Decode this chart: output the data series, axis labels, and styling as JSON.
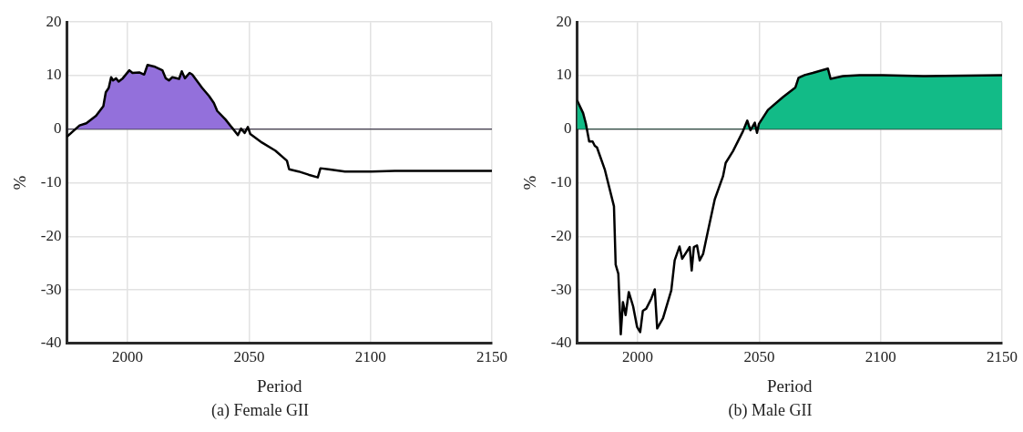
{
  "chart_data": [
    {
      "type": "area",
      "title": "(a) Female GII",
      "xlabel": "Period",
      "ylabel": "%",
      "xlim": [
        1975,
        2150
      ],
      "xticks": [
        2000,
        2050,
        2100,
        2150
      ],
      "ylim": [
        -40,
        20
      ],
      "yticks": [
        -40,
        -30,
        -20,
        -10,
        0,
        10,
        20
      ],
      "grid": true,
      "legend": false,
      "ref_lines": [
        {
          "axis": "y",
          "value": 0,
          "color": "#000000"
        }
      ],
      "series": [
        {
          "color": "#9370db",
          "x": [
            1975,
            1980.2,
            1983,
            1987,
            1990,
            1991,
            1992.2,
            1993.2,
            1994,
            1995.2,
            1996.3,
            1998,
            2000.7,
            2002,
            2004.8,
            2006.8,
            2008.2,
            2010.9,
            2014.3,
            2015.7,
            2017,
            2018.4,
            2021.2,
            2022.3,
            2023.6,
            2025.5,
            2026.6,
            2030.7,
            2033.5,
            2035.5,
            2036.9,
            2040.3,
            2043.3,
            2045.4,
            2046.7,
            2048.2,
            2049.5,
            2050.5,
            2055.3,
            2060.8,
            2065.6,
            2066.5,
            2070.4,
            2074.5,
            2078.3,
            2079.4,
            2082.7,
            2089.5,
            2100.4,
            2110,
            2123.6,
            2150
          ],
          "values": [
            -1.4,
            0.7,
            1.1,
            2.5,
            4.3,
            6.9,
            7.7,
            9.7,
            9.1,
            9.5,
            8.9,
            9.5,
            11.0,
            10.5,
            10.6,
            10.2,
            12.0,
            11.7,
            11.0,
            9.5,
            9.1,
            9.7,
            9.4,
            10.8,
            9.5,
            10.5,
            10.2,
            7.7,
            6.2,
            4.9,
            3.4,
            1.8,
            0.1,
            -1.1,
            0.1,
            -0.7,
            0.4,
            -0.9,
            -2.5,
            -4.0,
            -5.9,
            -7.5,
            -7.9,
            -8.5,
            -9.0,
            -7.3,
            -7.5,
            -7.9,
            -7.9,
            -7.8,
            -7.8,
            -7.8
          ]
        }
      ]
    },
    {
      "type": "area",
      "title": "(b) Male GII",
      "xlabel": "Period",
      "ylabel": "%",
      "xlim": [
        1975,
        2150
      ],
      "xticks": [
        2000,
        2050,
        2100,
        2150
      ],
      "ylim": [
        -40,
        20
      ],
      "yticks": [
        -40,
        -30,
        -20,
        -10,
        0,
        10,
        20
      ],
      "grid": true,
      "legend": false,
      "ref_lines": [
        {
          "axis": "y",
          "value": 0,
          "color": "#000000"
        }
      ],
      "series": [
        {
          "color": "#12bb87",
          "x": [
            1975,
            1977.5,
            1978.6,
            1980,
            1981.4,
            1982.3,
            1983.2,
            1986.4,
            1990.2,
            1990.9,
            1992,
            1993,
            1993.9,
            1995,
            1996.3,
            1998.1,
            1999.7,
            2001,
            2002.1,
            2003.5,
            2005.6,
            2007,
            2008,
            2010.4,
            2013.8,
            2015.2,
            2017.2,
            2018.3,
            2021.4,
            2022.2,
            2023.1,
            2024.4,
            2025.5,
            2026.9,
            2028.2,
            2031.7,
            2035.1,
            2036.2,
            2039.2,
            2043.3,
            2045.1,
            2046.4,
            2048.2,
            2049.1,
            2049.9,
            2053.6,
            2059.8,
            2064.9,
            2066.2,
            2068.7,
            2072.1,
            2078.3,
            2079.4,
            2084.5,
            2091.3,
            2100.9,
            2117.4,
            2150
          ],
          "values": [
            5.4,
            3.0,
            1.1,
            -2.3,
            -2.3,
            -3.1,
            -3.4,
            -7.5,
            -14.4,
            -25.3,
            -27,
            -38.3,
            -32.3,
            -34.7,
            -30.4,
            -33.1,
            -36.9,
            -37.9,
            -33.9,
            -33.5,
            -31.6,
            -29.9,
            -37.2,
            -35.3,
            -30.1,
            -24.5,
            -21.9,
            -24.2,
            -22,
            -26.4,
            -22,
            -21.7,
            -24.5,
            -23.3,
            -20.5,
            -13.1,
            -8.8,
            -6.3,
            -4.1,
            -0.4,
            1.6,
            -0.2,
            1.2,
            -0.7,
            1.0,
            3.6,
            6.0,
            7.8,
            9.6,
            10.1,
            10.5,
            11.3,
            9.4,
            9.9,
            10.1,
            10.1,
            9.9,
            10.1
          ]
        }
      ]
    }
  ]
}
